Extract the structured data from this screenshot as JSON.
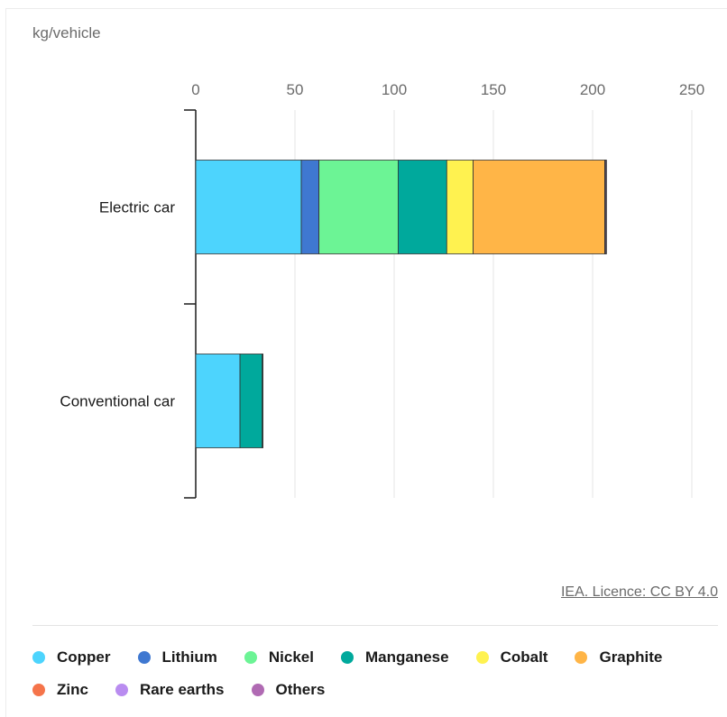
{
  "unit_label": "kg/vehicle",
  "source_link": "IEA. Licence: CC BY 4.0",
  "chart_data": {
    "type": "bar",
    "orientation": "horizontal",
    "stacked": true,
    "categories": [
      "Electric car",
      "Conventional car"
    ],
    "xlim": [
      0,
      250
    ],
    "xticks": [
      0,
      50,
      100,
      150,
      200,
      250
    ],
    "grid": true,
    "legend_position": "bottom",
    "series": [
      {
        "name": "Copper",
        "color": "#4dd4fd",
        "values": [
          53.2,
          22.3
        ]
      },
      {
        "name": "Lithium",
        "color": "#3f78d1",
        "values": [
          8.9,
          0
        ]
      },
      {
        "name": "Nickel",
        "color": "#6cf495",
        "values": [
          39.9,
          0
        ]
      },
      {
        "name": "Manganese",
        "color": "#00a99c",
        "values": [
          24.5,
          11.2
        ]
      },
      {
        "name": "Cobalt",
        "color": "#fff250",
        "values": [
          13.3,
          0
        ]
      },
      {
        "name": "Graphite",
        "color": "#ffb547",
        "values": [
          66.3,
          0
        ]
      },
      {
        "name": "Zinc",
        "color": "#f5744a",
        "values": [
          0.1,
          0.1
        ]
      },
      {
        "name": "Rare earths",
        "color": "#b98cf0",
        "values": [
          0.5,
          0
        ]
      },
      {
        "name": "Others",
        "color": "#b06ab3",
        "values": [
          0.3,
          0.3
        ]
      }
    ]
  }
}
